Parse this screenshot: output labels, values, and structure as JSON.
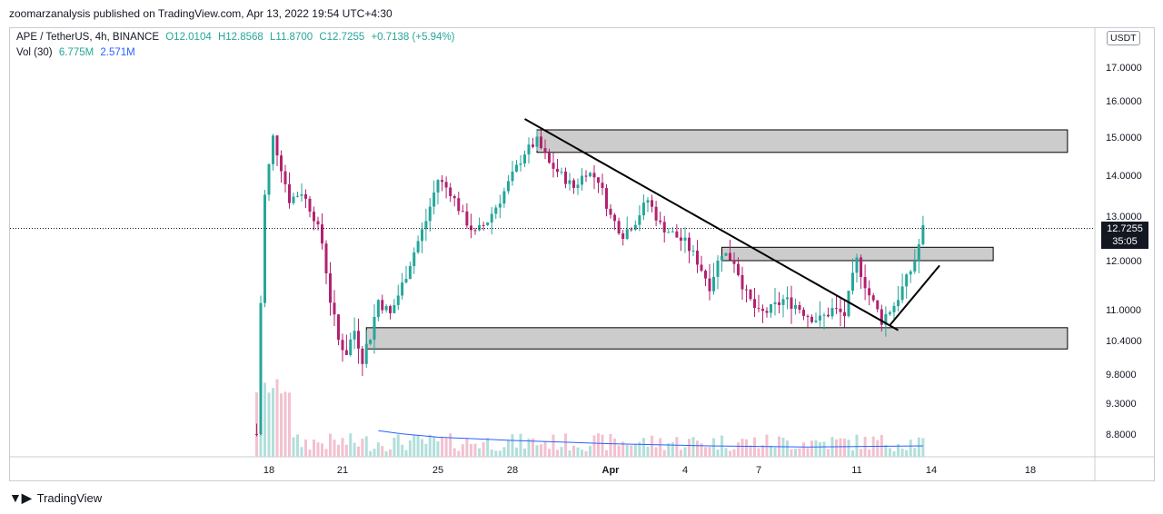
{
  "header": {
    "text": "zoomarzanalysis published on TradingView.com, Apr 13, 2022 19:54 UTC+4:30"
  },
  "legend": {
    "symbol": "APE / TetherUS, 4h, BINANCE",
    "open": "O12.0104",
    "high": "H12.8568",
    "low": "L11.8700",
    "close": "C12.7255",
    "change": "+0.7138 (+5.94%)",
    "vol_label": "Vol (30)",
    "vol_value": "6.775M",
    "vol_ma": "2.571M"
  },
  "currency_label": "USDT",
  "price_tag": {
    "price": "12.7255",
    "countdown": "35:05"
  },
  "footer": {
    "brand": "TradingView",
    "logo": "tradingview-logo-icon"
  },
  "colors": {
    "up": "#26a69a",
    "down": "#b2226f",
    "zone": "#cccccc",
    "trendline": "#000000",
    "vol_ma": "#2962ff"
  },
  "chart_data": {
    "type": "candlestick",
    "symbol": "APE / TetherUS",
    "interval": "4h",
    "y_ticks": [
      17.0,
      16.0,
      15.0,
      14.0,
      13.0,
      12.0,
      11.0,
      10.4,
      9.8,
      9.3,
      8.8
    ],
    "y_tick_labels": [
      "17.0000",
      "16.0000",
      "15.0000",
      "14.0000",
      "13.0000",
      "12.0000",
      "11.0000",
      "10.4000",
      "9.8000",
      "9.3000",
      "8.8000"
    ],
    "x_labels": [
      "18",
      "21",
      "25",
      "28",
      "Apr",
      "4",
      "7",
      "11",
      "14",
      "18"
    ],
    "x_label_dates": [
      "2022-03-18",
      "2022-03-21",
      "2022-03-25",
      "2022-03-28",
      "2022-04-01",
      "2022-04-04",
      "2022-04-07",
      "2022-04-11",
      "2022-04-14",
      "2022-04-18"
    ],
    "last_price": 12.7255,
    "price_path": [
      [
        "2022-03-17 12:00",
        8.8
      ],
      [
        "2022-03-17 20:00",
        13.5
      ],
      [
        "2022-03-18 04:00",
        15.0
      ],
      [
        "2022-03-18 12:00",
        14.2
      ],
      [
        "2022-03-18 20:00",
        13.4
      ],
      [
        "2022-03-19 08:00",
        13.6
      ],
      [
        "2022-03-19 20:00",
        13.0
      ],
      [
        "2022-03-20 04:00",
        12.4
      ],
      [
        "2022-03-20 12:00",
        11.2
      ],
      [
        "2022-03-20 20:00",
        10.4
      ],
      [
        "2022-03-21 04:00",
        10.2
      ],
      [
        "2022-03-21 12:00",
        10.6
      ],
      [
        "2022-03-21 20:00",
        10.1
      ],
      [
        "2022-03-22 04:00",
        10.5
      ],
      [
        "2022-03-22 12:00",
        11.2
      ],
      [
        "2022-03-23 00:00",
        10.9
      ],
      [
        "2022-03-23 12:00",
        11.5
      ],
      [
        "2022-03-24 00:00",
        12.2
      ],
      [
        "2022-03-24 12:00",
        12.9
      ],
      [
        "2022-03-25 00:00",
        13.9
      ],
      [
        "2022-03-25 12:00",
        13.6
      ],
      [
        "2022-03-26 00:00",
        13.0
      ],
      [
        "2022-03-26 12:00",
        12.6
      ],
      [
        "2022-03-27 00:00",
        12.9
      ],
      [
        "2022-03-27 12:00",
        13.4
      ],
      [
        "2022-03-28 00:00",
        14.0
      ],
      [
        "2022-03-28 12:00",
        14.6
      ],
      [
        "2022-03-29 00:00",
        14.9
      ],
      [
        "2022-03-29 12:00",
        14.3
      ],
      [
        "2022-03-30 00:00",
        14.0
      ],
      [
        "2022-03-30 12:00",
        13.7
      ],
      [
        "2022-03-31 00:00",
        14.1
      ],
      [
        "2022-03-31 12:00",
        13.9
      ],
      [
        "2022-04-01 00:00",
        13.0
      ],
      [
        "2022-04-01 12:00",
        12.6
      ],
      [
        "2022-04-02 00:00",
        12.9
      ],
      [
        "2022-04-02 12:00",
        13.4
      ],
      [
        "2022-04-03 00:00",
        12.8
      ],
      [
        "2022-04-03 12:00",
        12.6
      ],
      [
        "2022-04-04 00:00",
        12.4
      ],
      [
        "2022-04-04 12:00",
        12.0
      ],
      [
        "2022-04-05 00:00",
        11.5
      ],
      [
        "2022-04-05 12:00",
        12.2
      ],
      [
        "2022-04-06 00:00",
        12.0
      ],
      [
        "2022-04-06 12:00",
        11.3
      ],
      [
        "2022-04-07 00:00",
        10.9
      ],
      [
        "2022-04-07 12:00",
        11.0
      ],
      [
        "2022-04-08 00:00",
        11.2
      ],
      [
        "2022-04-08 12:00",
        11.1
      ],
      [
        "2022-04-09 00:00",
        10.9
      ],
      [
        "2022-04-09 12:00",
        10.8
      ],
      [
        "2022-04-10 00:00",
        11.0
      ],
      [
        "2022-04-10 12:00",
        10.9
      ],
      [
        "2022-04-11 00:00",
        12.0
      ],
      [
        "2022-04-11 12:00",
        11.3
      ],
      [
        "2022-04-12 00:00",
        10.8
      ],
      [
        "2022-04-12 12:00",
        11.1
      ],
      [
        "2022-04-13 00:00",
        11.6
      ],
      [
        "2022-04-13 08:00",
        12.0
      ],
      [
        "2022-04-13 16:00",
        12.7255
      ]
    ],
    "volume_ma_path": [
      [
        "2022-03-22 12:00",
        2.4
      ],
      [
        "2022-03-23 12:00",
        2.1
      ],
      [
        "2022-03-25 00:00",
        1.8
      ],
      [
        "2022-03-28 00:00",
        1.5
      ],
      [
        "2022-04-01 00:00",
        1.2
      ],
      [
        "2022-04-05 00:00",
        1.0
      ],
      [
        "2022-04-09 00:00",
        0.9
      ],
      [
        "2022-04-13 16:00",
        1.0
      ]
    ],
    "zones": [
      {
        "name": "resistance-zone",
        "low": 14.6,
        "high": 15.2,
        "from": "2022-03-29 00:00",
        "to": "2022-04-19 12:00"
      },
      {
        "name": "mid-zone",
        "low": 12.0,
        "high": 12.3,
        "from": "2022-04-05 12:00",
        "to": "2022-04-16 12:00"
      },
      {
        "name": "support-zone",
        "low": 10.25,
        "high": 10.65,
        "from": "2022-03-22 00:00",
        "to": "2022-04-19 12:00"
      }
    ],
    "trendlines": [
      {
        "name": "descending-trendline",
        "from": [
          "2022-03-28 12:00",
          15.5
        ],
        "to": [
          "2022-04-12 16:00",
          10.6
        ]
      },
      {
        "name": "ascending-trendline",
        "from": [
          "2022-04-12 08:00",
          10.7
        ],
        "to": [
          "2022-04-14 08:00",
          11.9
        ]
      }
    ]
  }
}
